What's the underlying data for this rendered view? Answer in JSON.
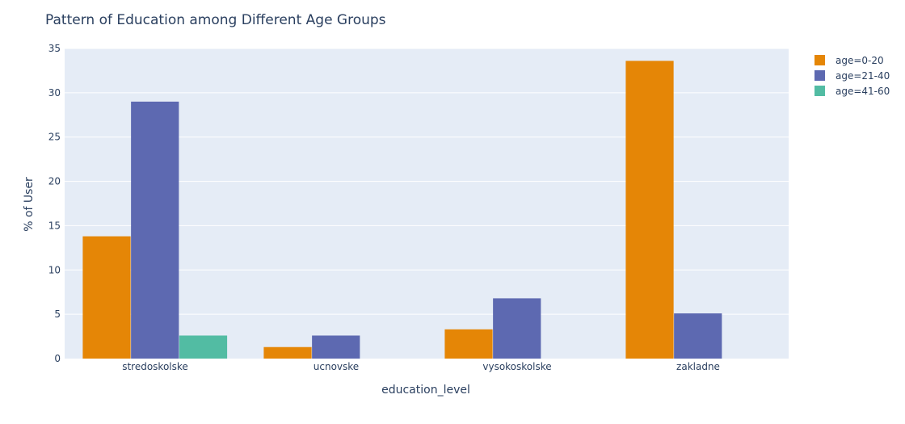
{
  "chart_data": {
    "type": "bar",
    "title": "Pattern of Education among Different Age Groups",
    "xlabel": "education_level",
    "ylabel": "% of User",
    "categories": [
      "stredoskolske",
      "ucnovske",
      "vysokoskolske",
      "zakladne"
    ],
    "series": [
      {
        "name": "age=0-20",
        "color": "#E58606",
        "values": [
          13.8,
          1.3,
          3.3,
          33.6
        ]
      },
      {
        "name": "age=21-40",
        "color": "#5D69B1",
        "values": [
          29.0,
          2.6,
          6.8,
          5.1
        ]
      },
      {
        "name": "age=41-60",
        "color": "#52BCA3",
        "values": [
          2.6,
          0,
          0,
          0
        ]
      }
    ],
    "ylim": [
      0,
      35
    ],
    "yticks": [
      0,
      5,
      10,
      15,
      20,
      25,
      30,
      35
    ],
    "grid": true,
    "legend_position": "top-right",
    "plot_background": "#E5ECF6"
  }
}
